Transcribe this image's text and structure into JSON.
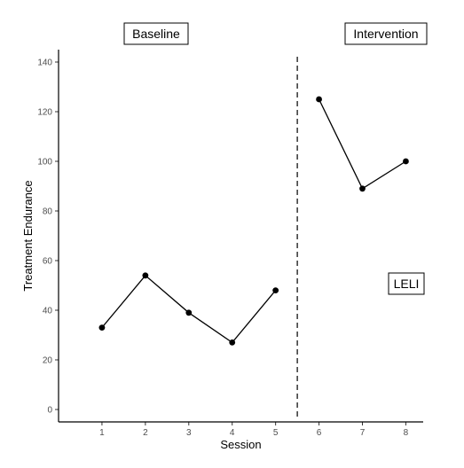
{
  "chart_data": {
    "type": "line",
    "title": "",
    "xlabel": "Session",
    "ylabel": "Treatment Endurance",
    "xlim": [
      0,
      8.4
    ],
    "ylim": [
      -5,
      145
    ],
    "x_ticks": [
      1,
      2,
      3,
      4,
      5,
      6,
      7,
      8
    ],
    "y_ticks": [
      0,
      20,
      40,
      60,
      80,
      100,
      120,
      140
    ],
    "grid": false,
    "phase_change_x": 5.5,
    "series": [
      {
        "phase": "baseline",
        "x": [
          1,
          2,
          3,
          4,
          5
        ],
        "y": [
          33,
          54,
          39,
          27,
          48
        ]
      },
      {
        "phase": "intervention",
        "x": [
          6,
          7,
          8
        ],
        "y": [
          125,
          89,
          100
        ]
      }
    ],
    "annotations": {
      "baseline": "Baseline",
      "intervention": "Intervention",
      "condition": "LELI"
    }
  }
}
